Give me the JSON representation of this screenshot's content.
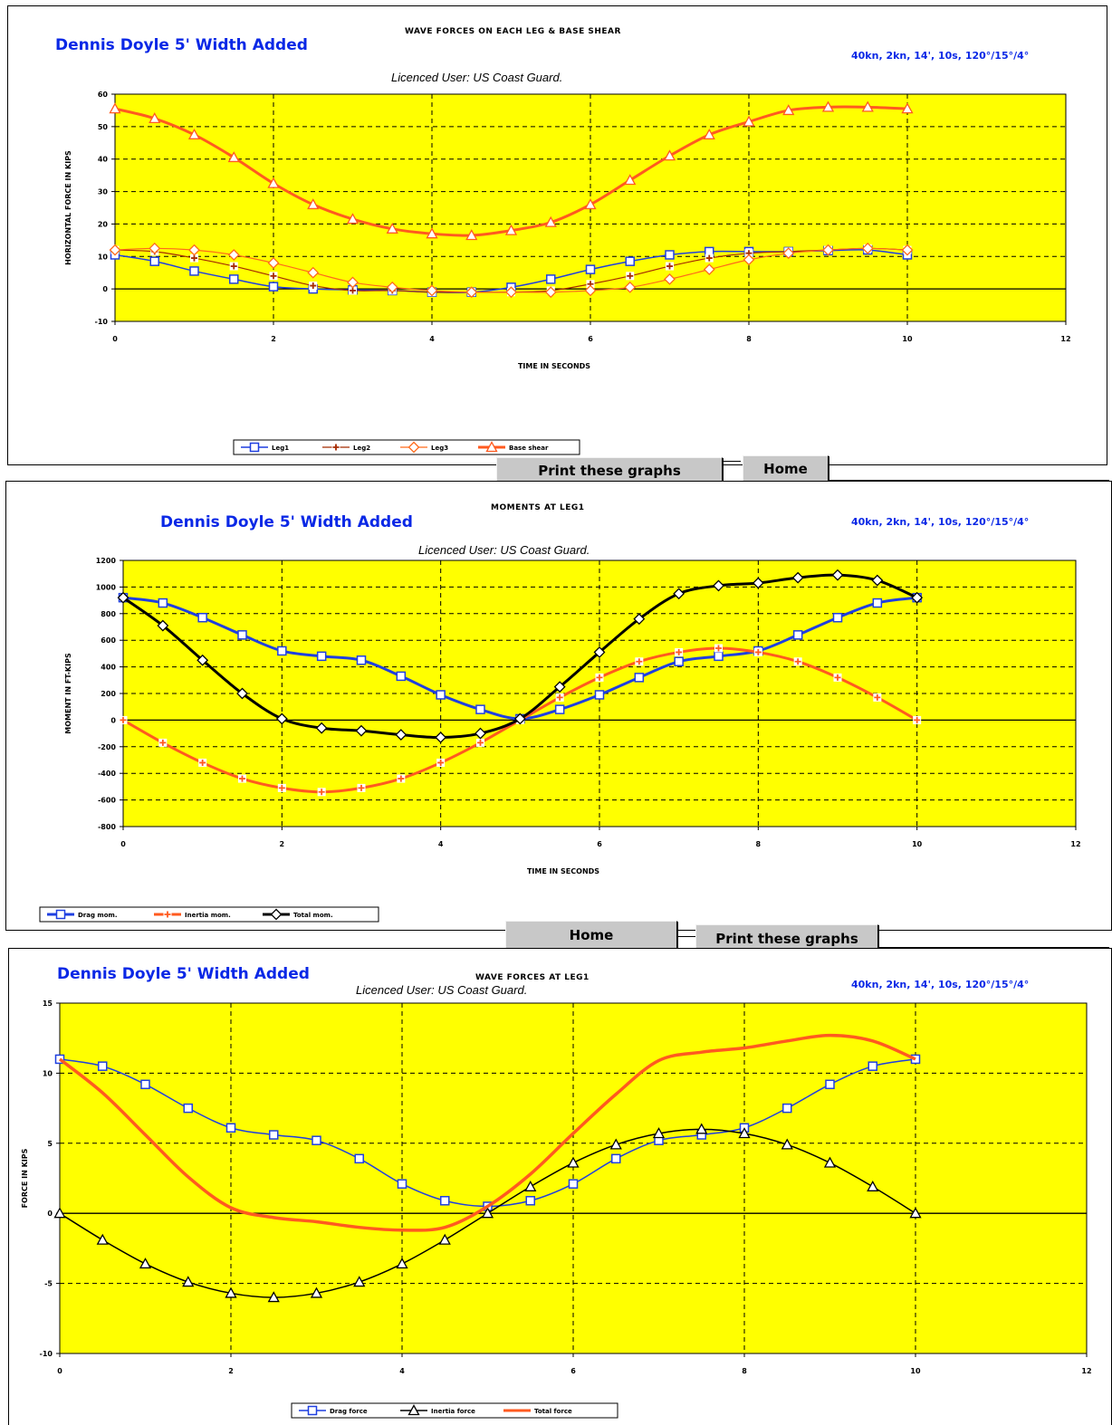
{
  "header": {
    "project": "Dennis Doyle 5' Width Added",
    "params": "40kn, 2kn, 14', 10s, 120°/15°/4°",
    "licence": "Licenced User: US Coast Guard."
  },
  "buttons": {
    "print": "Print these graphs",
    "home": "Home"
  },
  "colors": {
    "plot_bg": "#ffff00",
    "blue": "#1f3fe0",
    "orange": "#ff5a1f",
    "black": "#000000",
    "title_blue": "#0a28e6"
  },
  "chart_data": [
    {
      "id": "chart1",
      "type": "line",
      "title": "WAVE FORCES ON EACH LEG & BASE SHEAR",
      "xlabel": "TIME IN SECONDS",
      "ylabel": "HORIZONTAL FORCE IN KIPS",
      "xlim": [
        0,
        12
      ],
      "ylim": [
        -10,
        60
      ],
      "xticks": [
        0,
        2,
        4,
        6,
        8,
        10,
        12
      ],
      "xtick_labels": [
        "0",
        "2",
        "4",
        "6",
        "8",
        "10",
        "12"
      ],
      "yticks": [
        -10,
        0,
        10,
        20,
        30,
        40,
        50,
        60
      ],
      "ytick_labels": [
        "-10",
        "0",
        "10",
        "20",
        "30",
        "40",
        "50",
        "60"
      ],
      "x": [
        0,
        0.5,
        1,
        1.5,
        2,
        2.5,
        3,
        3.5,
        4,
        4.5,
        5,
        5.5,
        6,
        6.5,
        7,
        7.5,
        8,
        8.5,
        9,
        9.5,
        10
      ],
      "series": [
        {
          "name": "Leg1",
          "color": "#1f3fe0",
          "marker": "square",
          "width": 1.5,
          "values": [
            10.5,
            8.5,
            5.5,
            3,
            0.7,
            0,
            -0.3,
            -0.5,
            -1,
            -1,
            0.5,
            3,
            6,
            8.5,
            10.5,
            11.5,
            11.5,
            11.5,
            11.8,
            12,
            10.5
          ]
        },
        {
          "name": "Leg2",
          "color": "#a52a00",
          "marker": "plus",
          "width": 1.2,
          "values": [
            12,
            11.5,
            9.5,
            7,
            4,
            1,
            -0.5,
            -0.5,
            -1,
            -1,
            -1,
            -0.5,
            1.5,
            4,
            7,
            9.5,
            11,
            11.5,
            12,
            12.5,
            12
          ]
        },
        {
          "name": "Leg3",
          "color": "#ff6a1a",
          "marker": "diamond",
          "width": 1.2,
          "values": [
            12,
            12.5,
            12,
            10.5,
            8,
            5,
            2,
            0.5,
            -0.5,
            -1,
            -1,
            -1,
            -0.5,
            0.5,
            3,
            6,
            9,
            11,
            12,
            12.5,
            12
          ]
        },
        {
          "name": "Base shear",
          "color": "#ff5a1f",
          "marker": "triangle",
          "width": 3,
          "values": [
            55.5,
            52.5,
            47.5,
            40.5,
            32.5,
            26,
            21.5,
            18.5,
            17,
            16.5,
            18,
            20.5,
            26,
            33.5,
            41,
            47.5,
            51.5,
            55,
            56,
            56,
            55.5
          ]
        }
      ]
    },
    {
      "id": "chart2",
      "type": "line",
      "title": "MOMENTS AT LEG1",
      "xlabel": "TIME IN SECONDS",
      "ylabel": "MOMENT IN FT-KIPS",
      "xlim": [
        0,
        12
      ],
      "ylim": [
        -800,
        1200
      ],
      "xticks": [
        0,
        2,
        4,
        6,
        8,
        10,
        12
      ],
      "xtick_labels": [
        "0",
        "2",
        "4",
        "6",
        "8",
        "10",
        "12"
      ],
      "yticks": [
        -800,
        -600,
        -400,
        -200,
        0,
        200,
        400,
        600,
        800,
        1000,
        1200
      ],
      "ytick_labels": [
        "-800",
        "-600",
        "-400",
        "-200",
        "0",
        "200",
        "400",
        "600",
        "800",
        "1000",
        "1200"
      ],
      "x": [
        0,
        0.5,
        1,
        1.5,
        2,
        2.5,
        3,
        3.5,
        4,
        4.5,
        5,
        5.5,
        6,
        6.5,
        7,
        7.5,
        8,
        8.5,
        9,
        9.5,
        10
      ],
      "series": [
        {
          "name": "Drag mom.",
          "color": "#1f3fe0",
          "marker": "square",
          "width": 3,
          "values": [
            920,
            880,
            770,
            640,
            520,
            480,
            450,
            330,
            190,
            80,
            10,
            80,
            190,
            320,
            440,
            480,
            520,
            640,
            770,
            880,
            920
          ]
        },
        {
          "name": "Inertia mom.",
          "color": "#ff5a1f",
          "marker": "plus",
          "width": 3,
          "values": [
            0,
            -170,
            -320,
            -440,
            -510,
            -540,
            -510,
            -440,
            -320,
            -170,
            0,
            170,
            320,
            440,
            510,
            540,
            510,
            440,
            320,
            170,
            0
          ]
        },
        {
          "name": "Total mom.",
          "color": "#000000",
          "marker": "diamond",
          "width": 3,
          "values": [
            920,
            710,
            450,
            200,
            10,
            -60,
            -80,
            -110,
            -130,
            -100,
            10,
            250,
            510,
            760,
            950,
            1010,
            1030,
            1070,
            1090,
            1050,
            920
          ]
        }
      ]
    },
    {
      "id": "chart3",
      "type": "line",
      "title": "WAVE FORCES AT LEG1",
      "xlabel": "",
      "ylabel": "FORCE IN KIPS",
      "xlim": [
        0,
        12
      ],
      "ylim": [
        -10,
        15
      ],
      "xticks": [
        0,
        2,
        4,
        6,
        8,
        10,
        12
      ],
      "xtick_labels": [
        "0",
        "2",
        "4",
        "6",
        "8",
        "10",
        "12"
      ],
      "yticks": [
        -10,
        -5,
        0,
        5,
        10,
        15
      ],
      "ytick_labels": [
        "-10",
        "-5",
        "0",
        "5",
        "10",
        "15"
      ],
      "x": [
        0,
        0.5,
        1,
        1.5,
        2,
        2.5,
        3,
        3.5,
        4,
        4.5,
        5,
        5.5,
        6,
        6.5,
        7,
        7.5,
        8,
        8.5,
        9,
        9.5,
        10
      ],
      "series": [
        {
          "name": "Drag force",
          "color": "#1f3fe0",
          "marker": "square",
          "width": 1.5,
          "values": [
            11,
            10.5,
            9.2,
            7.5,
            6.1,
            5.6,
            5.2,
            3.9,
            2.1,
            0.9,
            0.5,
            0.9,
            2.1,
            3.9,
            5.2,
            5.6,
            6.1,
            7.5,
            9.2,
            10.5,
            11
          ]
        },
        {
          "name": "Inertia force",
          "color": "#000000",
          "marker": "triangle",
          "width": 1.5,
          "values": [
            0,
            -1.9,
            -3.6,
            -4.9,
            -5.7,
            -6,
            -5.7,
            -4.9,
            -3.6,
            -1.9,
            0,
            1.9,
            3.6,
            4.9,
            5.7,
            6,
            5.7,
            4.9,
            3.6,
            1.9,
            0
          ]
        },
        {
          "name": "Total force",
          "color": "#ff5a1f",
          "marker": "none",
          "width": 3.5,
          "values": [
            11,
            8.6,
            5.6,
            2.6,
            0.4,
            -0.3,
            -0.6,
            -1,
            -1.2,
            -1,
            0.5,
            2.8,
            5.7,
            8.5,
            10.9,
            11.5,
            11.8,
            12.3,
            12.7,
            12.3,
            11
          ]
        }
      ]
    }
  ]
}
